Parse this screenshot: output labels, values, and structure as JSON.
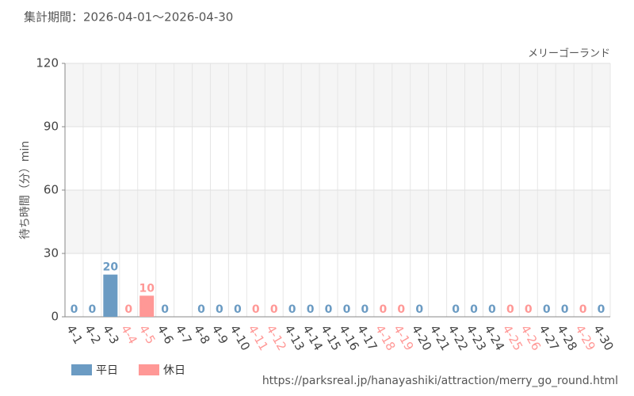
{
  "chart_data": {
    "type": "bar",
    "title": "集計期間：2026-04-01～2026-04-30",
    "subtitle": "メリーゴーランド",
    "y_label": "待ち時間（分）min",
    "source": "https://parksreal.jp/hanayashiki/attraction/merry_go_round.html",
    "categories": [
      "4-1",
      "4-2",
      "4-3",
      "4-4",
      "4-5",
      "4-6",
      "4-7",
      "4-8",
      "4-9",
      "4-10",
      "4-11",
      "4-12",
      "4-13",
      "4-14",
      "4-15",
      "4-16",
      "4-17",
      "4-18",
      "4-19",
      "4-20",
      "4-21",
      "4-22",
      "4-23",
      "4-24",
      "4-25",
      "4-26",
      "4-27",
      "4-28",
      "4-29",
      "4-30"
    ],
    "series": [
      {
        "name": "平日",
        "color": "#6b9bc3",
        "values": [
          0,
          0,
          20,
          null,
          null,
          0,
          null,
          0,
          0,
          0,
          null,
          null,
          0,
          0,
          0,
          0,
          0,
          null,
          null,
          0,
          null,
          0,
          0,
          0,
          null,
          null,
          0,
          0,
          null,
          0
        ]
      },
      {
        "name": "休日",
        "color": "#ff9896",
        "values": [
          null,
          null,
          null,
          0,
          10,
          null,
          null,
          null,
          null,
          null,
          0,
          0,
          null,
          null,
          null,
          null,
          null,
          0,
          0,
          null,
          null,
          null,
          null,
          null,
          0,
          0,
          null,
          null,
          0,
          null
        ]
      }
    ],
    "ylim": [
      0,
      120
    ],
    "yticks": [
      0,
      30,
      60,
      90,
      120
    ],
    "grid": true
  }
}
